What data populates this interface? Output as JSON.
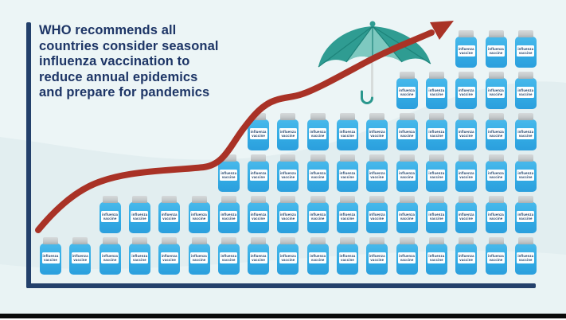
{
  "headline": "WHO recommends all\ncountries consider seasonal\ninfluenza vaccination to\nreduce annual epidemics\nand prepare for pandemics",
  "vial_label": "influenza\nvaccine",
  "colors": {
    "background": "#e2eef0",
    "headline_text": "#1d3566",
    "axis": "#23406b",
    "vial_body": "#35ace4",
    "vial_cap": "#c3c8ca",
    "vial_label_bg": "#fdfefe",
    "trend_arrow": "#a93226",
    "umbrella": "#2f9c92",
    "umbrella_light": "#7ec9c0",
    "bottom_border": "#0a0a0a"
  },
  "chart_data": {
    "type": "bar",
    "subtype": "pictogram",
    "icon": "vaccine-vial",
    "title": "WHO recommends all countries consider seasonal influenza vaccination to reduce annual epidemics and prepare for pandemics",
    "xlabel": "",
    "ylabel": "",
    "categories": [
      "",
      "",
      "",
      "",
      "",
      "",
      "",
      "",
      "",
      "",
      "",
      "",
      "",
      "",
      "",
      "",
      ""
    ],
    "values": [
      1,
      1,
      2,
      2,
      2,
      2,
      3,
      4,
      4,
      4,
      4,
      4,
      5,
      5,
      6,
      6,
      6
    ],
    "total_icons": 61,
    "ylim": [
      0,
      6
    ],
    "grid": false,
    "legend": false,
    "trend": "rising",
    "annotations": [
      "umbrella sheltering vials",
      "upward trend arrow"
    ]
  }
}
